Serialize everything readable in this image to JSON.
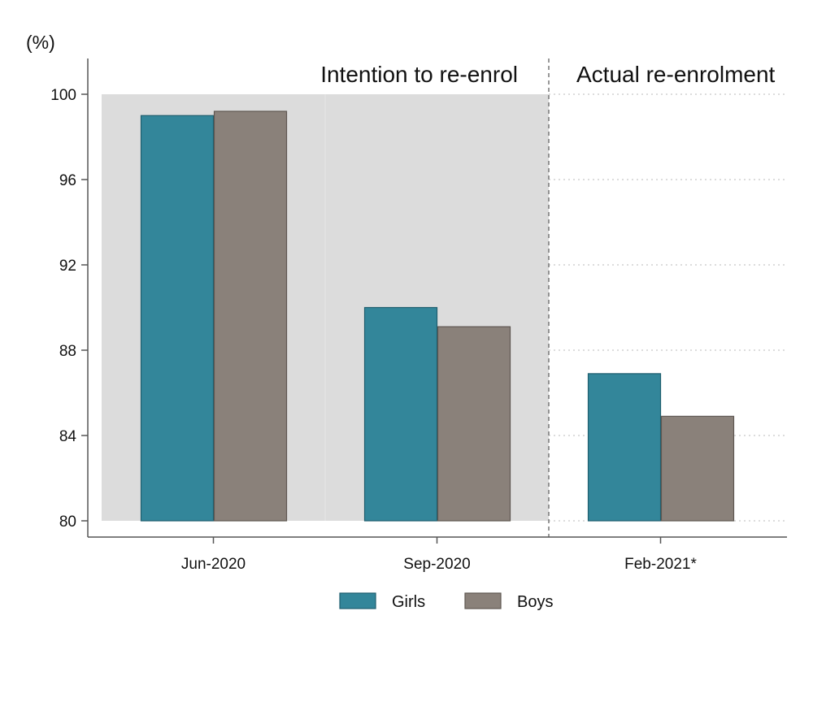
{
  "chart_data": {
    "type": "bar",
    "ylabel": "(%)",
    "ylim": [
      80,
      100
    ],
    "yticks": [
      80,
      84,
      88,
      92,
      96,
      100
    ],
    "categories": [
      "Jun-2020",
      "Sep-2020",
      "Feb-2021*"
    ],
    "series": [
      {
        "name": "Girls",
        "color": "#33869a",
        "values": [
          99.0,
          90.0,
          86.9
        ]
      },
      {
        "name": "Boys",
        "color": "#8a817a",
        "values": [
          99.2,
          89.1,
          84.9
        ]
      }
    ],
    "panels": [
      {
        "label": "Intention to re-enrol",
        "categories": [
          "Jun-2020",
          "Sep-2020"
        ],
        "shaded": true,
        "shade_color": "#dcdcdc"
      },
      {
        "label": "Actual re-enrolment",
        "categories": [
          "Feb-2021*"
        ],
        "shaded": false
      }
    ],
    "grid": true,
    "legend_position": "bottom-center"
  }
}
